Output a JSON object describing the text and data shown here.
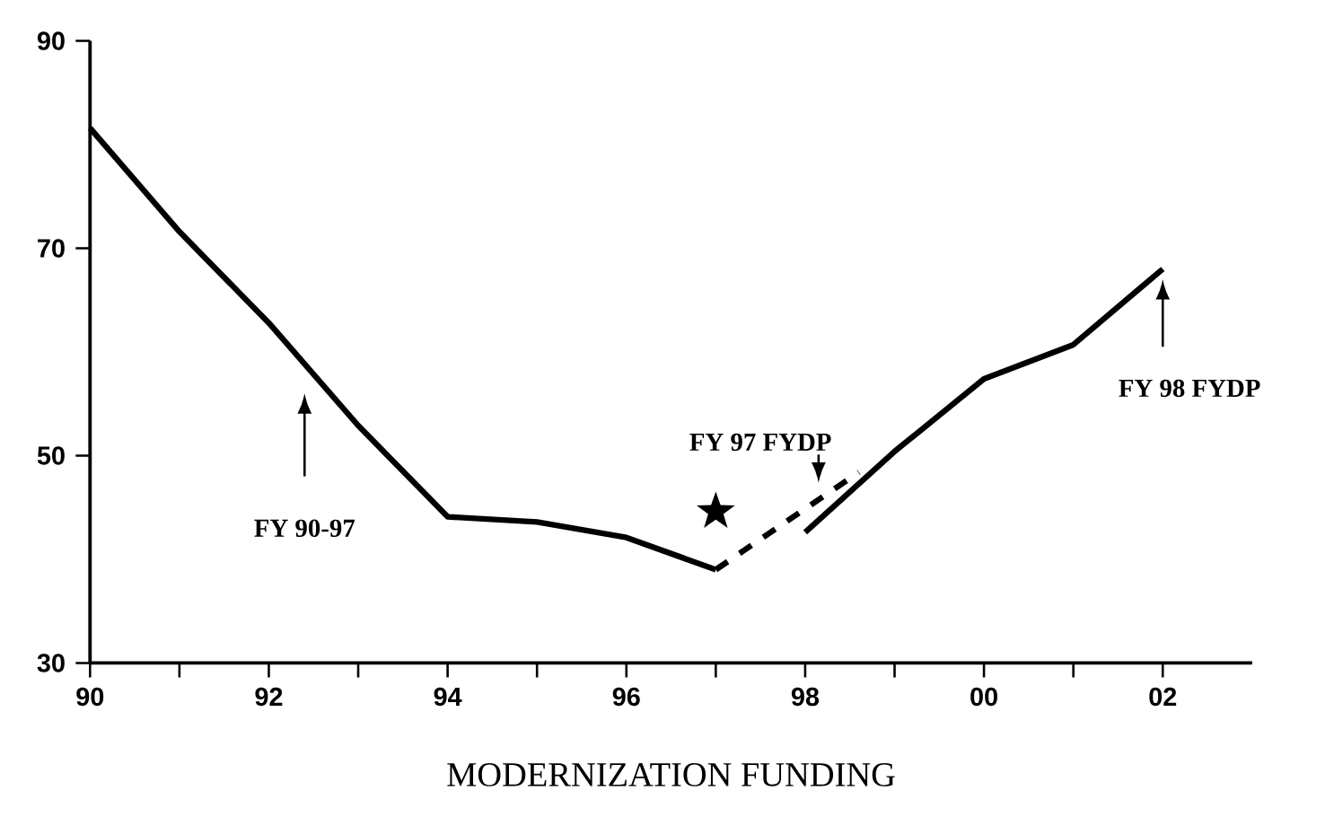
{
  "chart_data": {
    "type": "line",
    "title": "MODERNIZATION FUNDING",
    "xlim": [
      1990,
      2003
    ],
    "xticks": [
      {
        "value": 1990,
        "label": "90"
      },
      {
        "value": 1991,
        "label": null
      },
      {
        "value": 1992,
        "label": "92"
      },
      {
        "value": 1993,
        "label": null
      },
      {
        "value": 1994,
        "label": "94"
      },
      {
        "value": 1995,
        "label": null
      },
      {
        "value": 1996,
        "label": "96"
      },
      {
        "value": 1997,
        "label": null
      },
      {
        "value": 1998,
        "label": "98"
      },
      {
        "value": 1999,
        "label": null
      },
      {
        "value": 2000,
        "label": "00"
      },
      {
        "value": 2001,
        "label": null
      },
      {
        "value": 2002,
        "label": "02"
      }
    ],
    "ylim": [
      30,
      90
    ],
    "yticks": [
      30,
      50,
      70,
      90
    ],
    "grid": false,
    "legend": false,
    "marker": "none",
    "series": [
      {
        "name": "FY 90-97",
        "color": "#000000",
        "line_style": "solid",
        "x": [
          1990,
          1991,
          1992,
          1993,
          1994,
          1995,
          1996,
          1997
        ],
        "values": [
          81.6,
          71.6,
          62.8,
          52.9,
          44.1,
          43.6,
          42.1,
          39.0
        ]
      },
      {
        "name": "FY 97 FYDP",
        "color": "#000000",
        "line_style": "dashed",
        "x": [
          1997,
          1998.6
        ],
        "values": [
          39.0,
          48.4
        ]
      },
      {
        "name": "FY 98 FYDP",
        "color": "#000000",
        "line_style": "solid",
        "x": [
          1998,
          1999,
          2000,
          2001,
          2002
        ],
        "values": [
          42.6,
          50.4,
          57.4,
          60.7,
          68.0
        ]
      },
      {
        "type": "scatter",
        "marker": "star",
        "color": "#000000",
        "x": [
          1997
        ],
        "values": [
          44.6
        ]
      }
    ]
  }
}
